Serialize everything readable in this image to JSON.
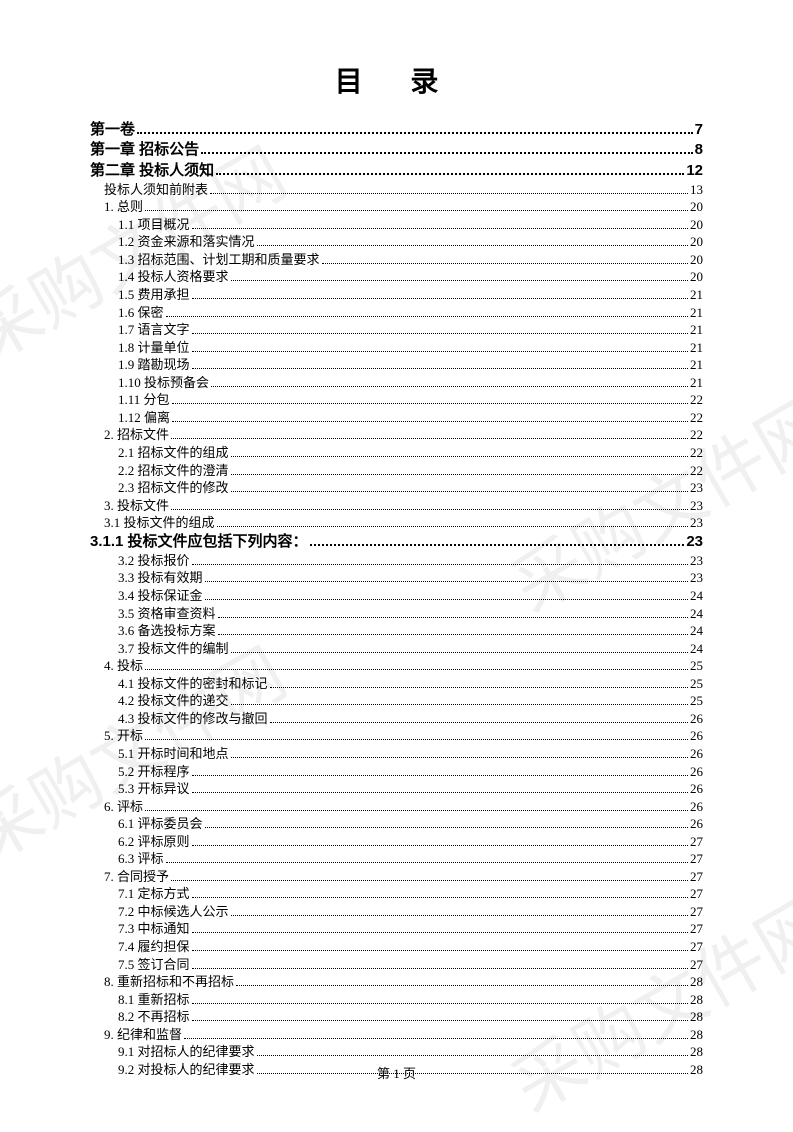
{
  "title": "目 录",
  "footer": "第 1 页",
  "watermark_text": "采购文件网",
  "watermark_url": "cgwenjian.com",
  "entries": [
    {
      "label": "第一卷",
      "page": "7",
      "level": "0"
    },
    {
      "label": "第一章 招标公告",
      "page": "8",
      "level": "0"
    },
    {
      "label": "第二章 投标人须知",
      "page": "12",
      "level": "0"
    },
    {
      "label": "投标人须知前附表",
      "page": "13",
      "level": "1"
    },
    {
      "label": "1. 总则",
      "page": "20",
      "level": "1"
    },
    {
      "label": "1.1 项目概况",
      "page": "20",
      "level": "2"
    },
    {
      "label": "1.2 资金来源和落实情况",
      "page": "20",
      "level": "2"
    },
    {
      "label": "1.3 招标范围、计划工期和质量要求",
      "page": "20",
      "level": "2"
    },
    {
      "label": "1.4 投标人资格要求",
      "page": "20",
      "level": "2"
    },
    {
      "label": "1.5 费用承担",
      "page": "21",
      "level": "2"
    },
    {
      "label": "1.6 保密",
      "page": "21",
      "level": "2"
    },
    {
      "label": "1.7 语言文字",
      "page": "21",
      "level": "2"
    },
    {
      "label": "1.8 计量单位",
      "page": "21",
      "level": "2"
    },
    {
      "label": "1.9 踏勘现场",
      "page": "21",
      "level": "2"
    },
    {
      "label": "1.10 投标预备会",
      "page": "21",
      "level": "2"
    },
    {
      "label": "1.11 分包",
      "page": "22",
      "level": "2"
    },
    {
      "label": "1.12 偏离",
      "page": "22",
      "level": "2"
    },
    {
      "label": "2. 招标文件",
      "page": "22",
      "level": "1"
    },
    {
      "label": "2.1 招标文件的组成",
      "page": "22",
      "level": "2"
    },
    {
      "label": "2.2 招标文件的澄清",
      "page": "22",
      "level": "2"
    },
    {
      "label": "2.3 招标文件的修改",
      "page": "23",
      "level": "2"
    },
    {
      "label": "3. 投标文件",
      "page": "23",
      "level": "1"
    },
    {
      "label": "3.1 投标文件的组成",
      "page": "23",
      "level": "1"
    },
    {
      "label": "3.1.1 投标文件应包括下列内容：",
      "page": "23",
      "level": "0b"
    },
    {
      "label": "3.2 投标报价",
      "page": "23",
      "level": "2"
    },
    {
      "label": "3.3 投标有效期",
      "page": "23",
      "level": "2"
    },
    {
      "label": "3.4 投标保证金",
      "page": "24",
      "level": "2"
    },
    {
      "label": "3.5 资格审查资料",
      "page": "24",
      "level": "2"
    },
    {
      "label": "3.6 备选投标方案",
      "page": "24",
      "level": "2"
    },
    {
      "label": "3.7 投标文件的编制",
      "page": "24",
      "level": "2"
    },
    {
      "label": "4. 投标",
      "page": "25",
      "level": "1"
    },
    {
      "label": "4.1 投标文件的密封和标记",
      "page": "25",
      "level": "2"
    },
    {
      "label": "4.2 投标文件的递交",
      "page": "25",
      "level": "2"
    },
    {
      "label": "4.3 投标文件的修改与撤回",
      "page": "26",
      "level": "2"
    },
    {
      "label": "5. 开标",
      "page": "26",
      "level": "1"
    },
    {
      "label": "5.1 开标时间和地点",
      "page": "26",
      "level": "2"
    },
    {
      "label": "5.2 开标程序",
      "page": "26",
      "level": "2"
    },
    {
      "label": "5.3 开标异议",
      "page": "26",
      "level": "2"
    },
    {
      "label": "6. 评标",
      "page": "26",
      "level": "1"
    },
    {
      "label": "6.1 评标委员会",
      "page": "26",
      "level": "2"
    },
    {
      "label": "6.2 评标原则",
      "page": "27",
      "level": "2"
    },
    {
      "label": "6.3 评标",
      "page": "27",
      "level": "2"
    },
    {
      "label": "7. 合同授予",
      "page": "27",
      "level": "1"
    },
    {
      "label": "7.1 定标方式",
      "page": "27",
      "level": "2"
    },
    {
      "label": "7.2 中标候选人公示",
      "page": "27",
      "level": "2"
    },
    {
      "label": "7.3 中标通知",
      "page": "27",
      "level": "2"
    },
    {
      "label": "7.4 履约担保",
      "page": "27",
      "level": "2"
    },
    {
      "label": "7.5 签订合同",
      "page": "27",
      "level": "2"
    },
    {
      "label": "8. 重新招标和不再招标",
      "page": "28",
      "level": "1"
    },
    {
      "label": "8.1 重新招标",
      "page": "28",
      "level": "2"
    },
    {
      "label": "8.2 不再招标",
      "page": "28",
      "level": "2"
    },
    {
      "label": "9. 纪律和监督",
      "page": "28",
      "level": "1"
    },
    {
      "label": "9.1 对招标人的纪律要求",
      "page": "28",
      "level": "2"
    },
    {
      "label": "9.2 对投标人的纪律要求",
      "page": "28",
      "level": "2"
    }
  ]
}
